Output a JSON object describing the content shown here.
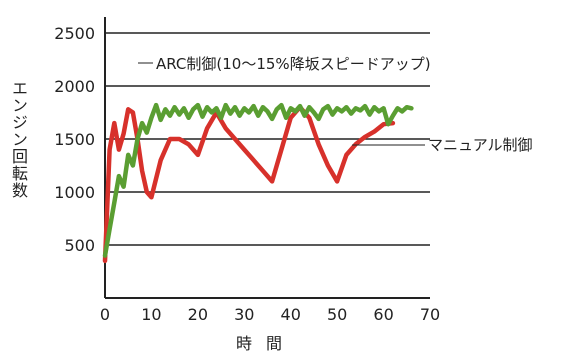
{
  "chart_data": {
    "type": "line",
    "xlabel": "時間",
    "ylabel": "エンジン回転数",
    "xlim": [
      0,
      70
    ],
    "ylim": [
      0,
      2500
    ],
    "x_ticks": [
      "0",
      "10",
      "20",
      "30",
      "40",
      "50",
      "60",
      "70"
    ],
    "y_ticks": [
      "500",
      "1000",
      "1500",
      "2000",
      "2500"
    ],
    "gridlines_y": [
      500,
      1000,
      1500,
      2000,
      2500
    ],
    "colors": {
      "arc": "#5a9e32",
      "manual": "#d7312b"
    },
    "series": [
      {
        "name": "ARC制御(10〜15%降坂スピードアップ)",
        "x": [
          0,
          1,
          2,
          3,
          4,
          5,
          6,
          7,
          8,
          9,
          10,
          11,
          12,
          13,
          14,
          15,
          16,
          17,
          18,
          19,
          20,
          21,
          22,
          23,
          24,
          25,
          26,
          27,
          28,
          29,
          30,
          31,
          32,
          33,
          34,
          35,
          36,
          37,
          38,
          39,
          40,
          41,
          42,
          43,
          44,
          45,
          46,
          47,
          48,
          49,
          50,
          51,
          52,
          53,
          54,
          55,
          56,
          57,
          58,
          59,
          60,
          61,
          62,
          63,
          64,
          65,
          66
        ],
        "values": [
          400,
          650,
          900,
          1150,
          1050,
          1350,
          1250,
          1500,
          1650,
          1560,
          1700,
          1820,
          1680,
          1780,
          1720,
          1800,
          1730,
          1790,
          1700,
          1780,
          1820,
          1710,
          1800,
          1750,
          1790,
          1700,
          1820,
          1740,
          1800,
          1720,
          1790,
          1750,
          1810,
          1720,
          1800,
          1760,
          1690,
          1780,
          1820,
          1700,
          1790,
          1760,
          1810,
          1720,
          1800,
          1750,
          1690,
          1780,
          1810,
          1730,
          1790,
          1760,
          1800,
          1740,
          1790,
          1770,
          1810,
          1730,
          1800,
          1760,
          1790,
          1640,
          1720,
          1790,
          1760,
          1800,
          1790
        ]
      },
      {
        "name": "マニュアル制御",
        "x": [
          0,
          1,
          2,
          3,
          4,
          5,
          6,
          7,
          8,
          9,
          10,
          12,
          14,
          16,
          18,
          20,
          22,
          24,
          26,
          28,
          30,
          32,
          34,
          36,
          38,
          40,
          42,
          44,
          46,
          48,
          50,
          52,
          54,
          56,
          58,
          60,
          62
        ],
        "values": [
          350,
          1400,
          1650,
          1400,
          1550,
          1780,
          1750,
          1500,
          1200,
          1000,
          950,
          1300,
          1500,
          1500,
          1450,
          1350,
          1600,
          1750,
          1600,
          1500,
          1400,
          1300,
          1200,
          1100,
          1400,
          1700,
          1800,
          1700,
          1450,
          1250,
          1100,
          1350,
          1450,
          1520,
          1570,
          1640,
          1650
        ]
      }
    ]
  }
}
